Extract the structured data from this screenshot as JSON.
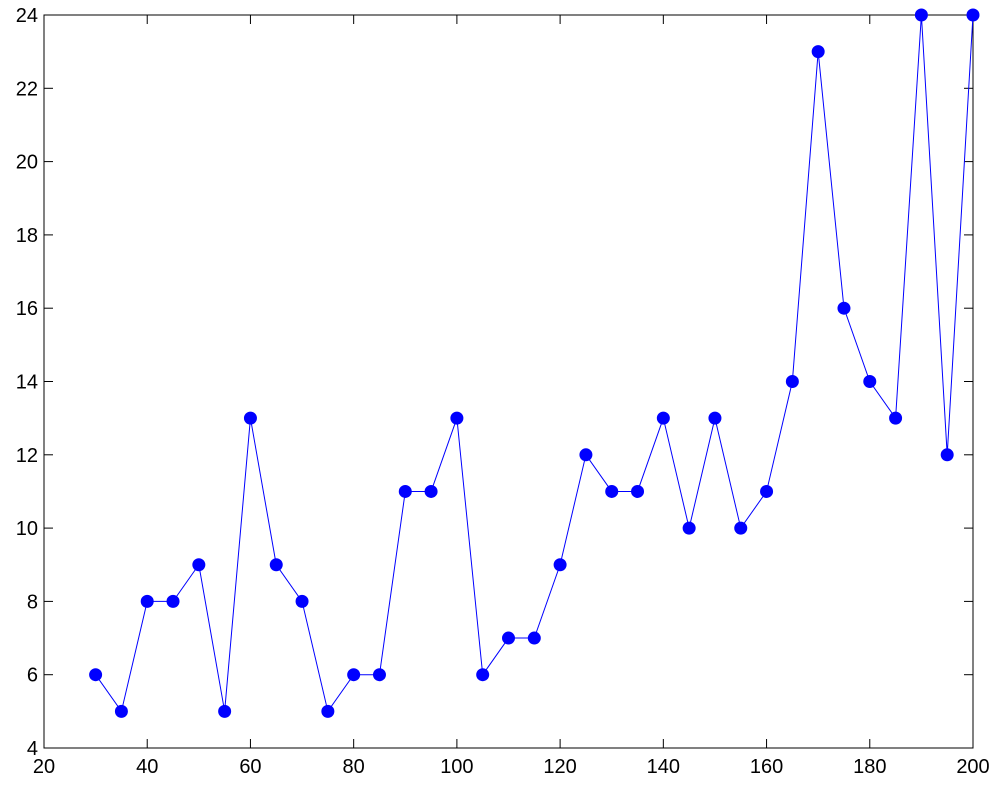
{
  "chart_data": {
    "type": "line",
    "title": "",
    "xlabel": "",
    "ylabel": "",
    "xlim": [
      20,
      200
    ],
    "ylim": [
      4,
      24
    ],
    "grid": false,
    "x_ticks": [
      20,
      40,
      60,
      80,
      100,
      120,
      140,
      160,
      180,
      200
    ],
    "y_ticks": [
      4,
      6,
      8,
      10,
      12,
      14,
      16,
      18,
      20,
      22,
      24
    ],
    "series": [
      {
        "color": "#0000ff",
        "marker": "circle",
        "x": [
          30,
          35,
          40,
          45,
          50,
          55,
          60,
          65,
          70,
          75,
          80,
          85,
          90,
          95,
          100,
          105,
          110,
          115,
          120,
          125,
          130,
          135,
          140,
          145,
          150,
          155,
          160,
          165,
          170,
          175,
          180,
          185,
          190,
          195,
          200
        ],
        "y": [
          6,
          5,
          8,
          8,
          9,
          5,
          13,
          9,
          8,
          5,
          6,
          6,
          11,
          11,
          13,
          6,
          7,
          7,
          9,
          12,
          11,
          11,
          13,
          10,
          13,
          10,
          11,
          14,
          23,
          16,
          14,
          13,
          24,
          12,
          24
        ]
      }
    ]
  }
}
